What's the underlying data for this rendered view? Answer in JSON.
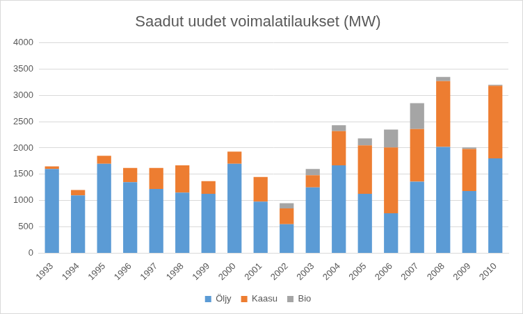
{
  "chart_data": {
    "type": "bar",
    "title": "Saadut uudet voimalatilaukset (MW)",
    "categories": [
      "1993",
      "1994",
      "1995",
      "1996",
      "1997",
      "1998",
      "1999",
      "2000",
      "2001",
      "2002",
      "2003",
      "2004",
      "2005",
      "2006",
      "2007",
      "2008",
      "2009",
      "2010"
    ],
    "series": [
      {
        "name": "Öljy",
        "color": "#5b9bd5",
        "values": [
          1600,
          1100,
          1700,
          1350,
          1220,
          1150,
          1130,
          1700,
          980,
          550,
          1250,
          1670,
          1130,
          760,
          1360,
          2020,
          1180,
          1800
        ]
      },
      {
        "name": "Kaasu",
        "color": "#ed7d31",
        "values": [
          50,
          100,
          150,
          270,
          400,
          520,
          240,
          230,
          470,
          300,
          230,
          650,
          920,
          1250,
          1000,
          1250,
          800,
          1380
        ]
      },
      {
        "name": "Bio",
        "color": "#a5a5a5",
        "values": [
          0,
          0,
          0,
          0,
          0,
          0,
          0,
          0,
          0,
          100,
          120,
          110,
          130,
          340,
          490,
          80,
          30,
          20
        ]
      }
    ],
    "ylim": [
      0,
      4000
    ],
    "yticks": [
      0,
      500,
      1000,
      1500,
      2000,
      2500,
      3000,
      3500,
      4000
    ],
    "stacked": true,
    "grid": true,
    "legend": "bottom"
  }
}
